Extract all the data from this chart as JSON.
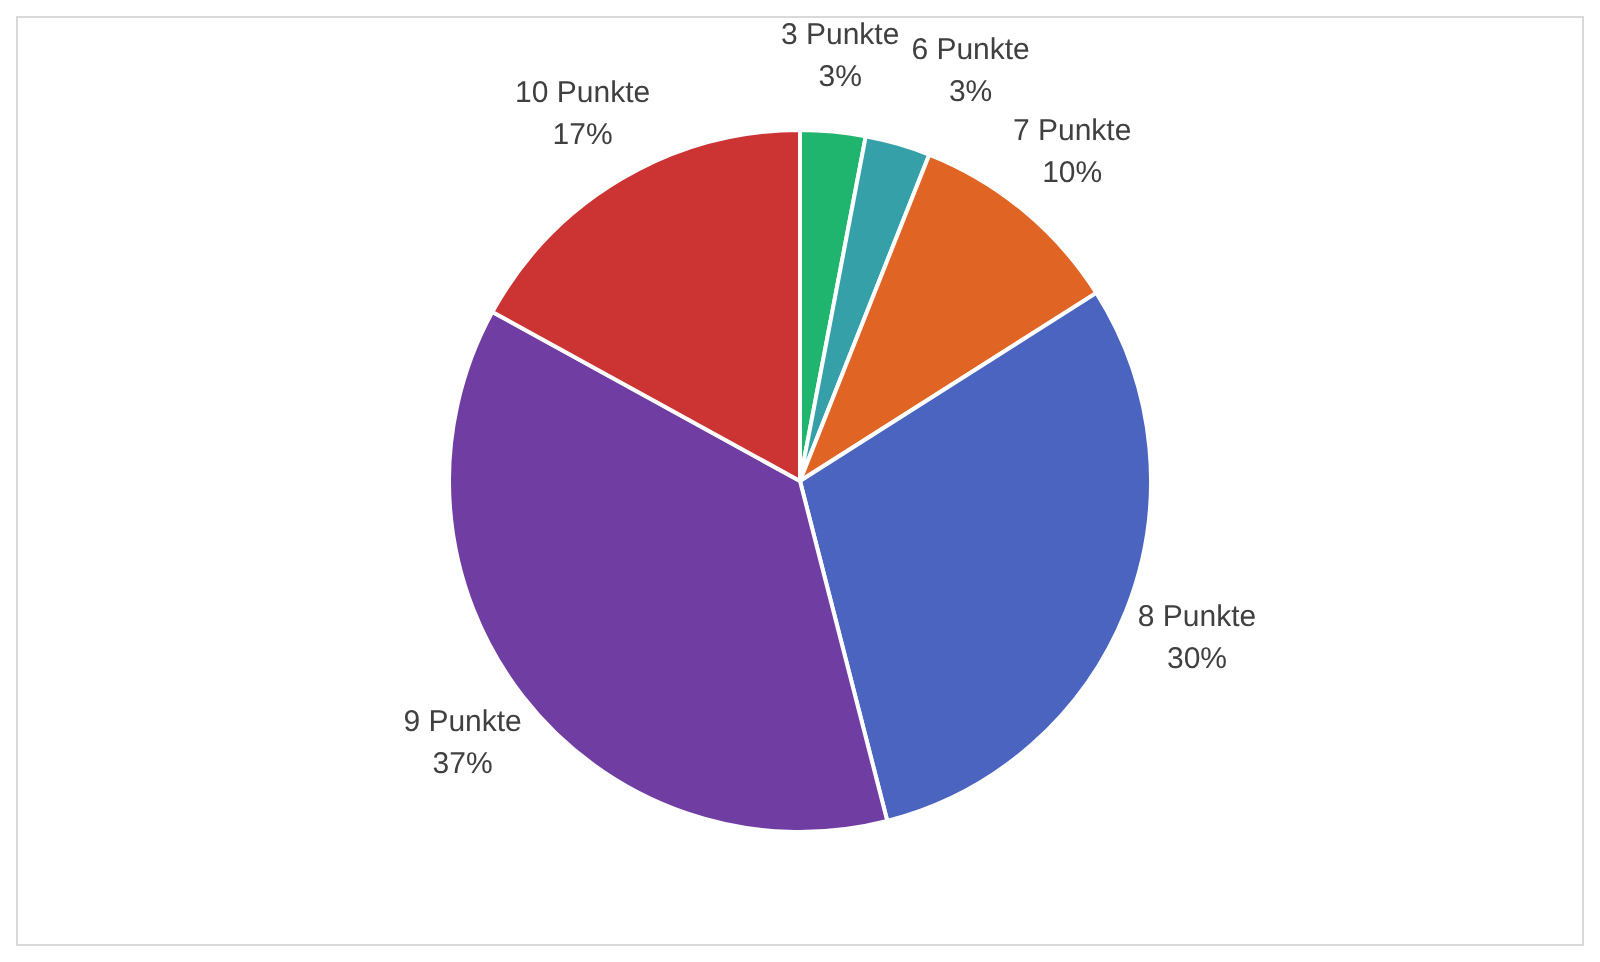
{
  "chart_data": {
    "type": "pie",
    "categories": [
      "3 Punkte",
      "6 Punkte",
      "7 Punkte",
      "8 Punkte",
      "9 Punkte",
      "10 Punkte"
    ],
    "values": [
      3,
      3,
      10,
      30,
      37,
      17
    ],
    "colors": [
      "#1fb56e",
      "#35a0a8",
      "#e06524",
      "#4a64bf",
      "#703ea3",
      "#cc3333"
    ],
    "value_labels": [
      "3%",
      "3%",
      "10%",
      "30%",
      "37%",
      "17%"
    ],
    "legend": false
  }
}
